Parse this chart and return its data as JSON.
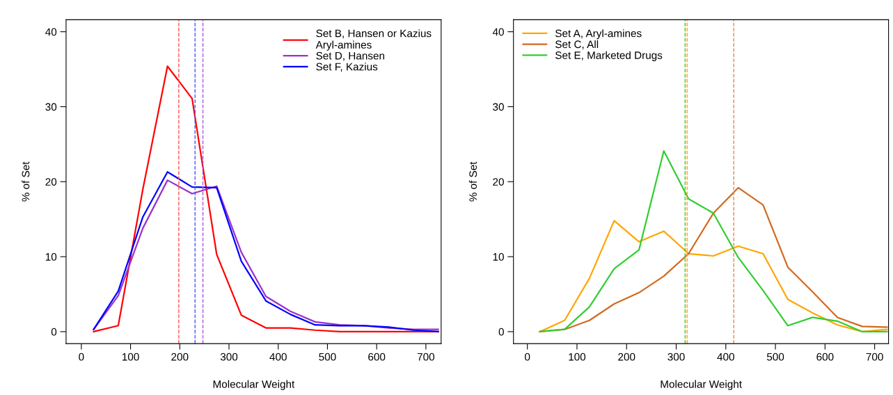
{
  "chart_data": [
    {
      "type": "line",
      "xlabel": "Molecular Weight",
      "ylabel": "% of Set",
      "x": [
        25,
        75,
        125,
        175,
        225,
        275,
        325,
        375,
        425,
        475,
        525,
        575,
        625,
        675,
        725
      ],
      "xlim": [
        -31,
        731
      ],
      "xticks": [
        0,
        100,
        200,
        300,
        400,
        500,
        600,
        700
      ],
      "ylim": [
        -1.6,
        41.6
      ],
      "yticks": [
        0,
        10,
        20,
        30,
        40
      ],
      "legend": "top right",
      "grid": false,
      "series": [
        {
          "name": "Set B, Hansen or Kazius\nAryl-amines",
          "color": "#ff0000",
          "values": [
            0,
            0.8,
            19,
            35.4,
            31.1,
            10.3,
            2.2,
            0.5,
            0.5,
            0.2,
            0,
            0,
            0,
            0,
            0
          ]
        },
        {
          "name": "Set D, Hansen",
          "color": "#9932cc",
          "values": [
            0.3,
            4.8,
            13.8,
            20.2,
            18.4,
            19.4,
            10.6,
            4.7,
            2.7,
            1.3,
            0.9,
            0.8,
            0.5,
            0.3,
            0.3
          ]
        },
        {
          "name": "Set F, Kazius",
          "color": "#0000ff",
          "values": [
            0.3,
            5.4,
            15.3,
            21.3,
            19.3,
            19.2,
            9.4,
            4.1,
            2.3,
            0.9,
            0.8,
            0.8,
            0.6,
            0.2,
            0
          ]
        }
      ],
      "ref_lines": [
        {
          "axis": "x",
          "value": 198,
          "color": "#ff5050",
          "line_style": "dashed"
        },
        {
          "axis": "x",
          "value": 231,
          "color": "#5050ff",
          "line_style": "dashed"
        },
        {
          "axis": "x",
          "value": 247,
          "color": "#a855d8",
          "line_style": "dashed"
        }
      ]
    },
    {
      "type": "line",
      "xlabel": "Molecular Weight",
      "ylabel": "% of Set",
      "x": [
        25,
        75,
        125,
        175,
        225,
        275,
        325,
        375,
        425,
        475,
        525,
        575,
        625,
        675,
        725
      ],
      "xlim": [
        -28,
        728
      ],
      "xticks": [
        0,
        100,
        200,
        300,
        400,
        500,
        600,
        700
      ],
      "ylim": [
        -1.6,
        41.6
      ],
      "yticks": [
        0,
        10,
        20,
        30,
        40
      ],
      "legend": "top left",
      "grid": false,
      "series": [
        {
          "name": "Set A, Aryl-amines",
          "color": "#ffa500",
          "values": [
            0,
            1.5,
            7.1,
            14.8,
            12.0,
            13.4,
            10.4,
            10.1,
            11.4,
            10.4,
            4.3,
            2.5,
            0.9,
            0,
            0.3
          ]
        },
        {
          "name": "Set C, All",
          "color": "#d2691e",
          "values": [
            0,
            0.3,
            1.5,
            3.7,
            5.2,
            7.4,
            10.4,
            15.8,
            19.2,
            16.9,
            8.6,
            5.3,
            1.9,
            0.7,
            0.6
          ]
        },
        {
          "name": "Set E, Marketed Drugs",
          "color": "#32cd32",
          "values": [
            0,
            0.3,
            3.3,
            8.4,
            10.9,
            24.1,
            17.7,
            15.8,
            9.9,
            5.5,
            0.8,
            1.9,
            1.4,
            0,
            0
          ]
        }
      ],
      "ref_lines": [
        {
          "axis": "x",
          "value": 318,
          "color": "#32cd32",
          "line_style": "dashed"
        },
        {
          "axis": "x",
          "value": 322,
          "color": "#ffa500",
          "line_style": "dashed"
        },
        {
          "axis": "x",
          "value": 416,
          "color": "#e08850",
          "line_style": "dashed"
        }
      ]
    }
  ]
}
